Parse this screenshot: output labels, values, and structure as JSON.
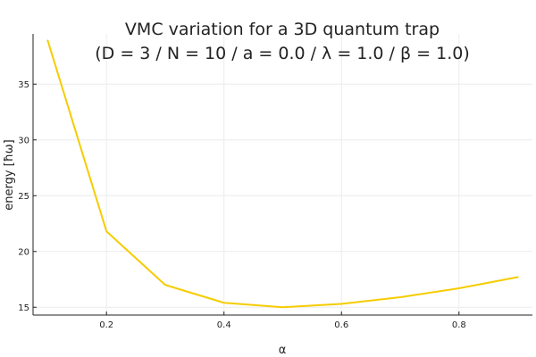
{
  "chart_data": {
    "type": "line",
    "title_lines": [
      "VMC variation for a 3D quantum trap",
      "(D = 3 / N = 10 / a = 0.0 / λ = 1.0 / β = 1.0)"
    ],
    "xlabel": "α",
    "ylabel": "energy [ħω]",
    "x_ticks": [
      0.2,
      0.4,
      0.6,
      0.8
    ],
    "x_tick_labels": [
      "0.2",
      "0.4",
      "0.6",
      "0.8"
    ],
    "y_ticks": [
      15,
      20,
      25,
      30,
      35
    ],
    "y_tick_labels": [
      "15",
      "20",
      "25",
      "30",
      "35"
    ],
    "xlim": [
      0.075,
      0.925
    ],
    "ylim": [
      14.3,
      39.5
    ],
    "grid": true,
    "legend": "none",
    "series": [
      {
        "color": "#f6cc00",
        "x": [
          0.1,
          0.2,
          0.3,
          0.4,
          0.5,
          0.6,
          0.7,
          0.8,
          0.9
        ],
        "y": [
          38.9,
          21.8,
          17.0,
          15.4,
          15.0,
          15.3,
          15.9,
          16.7,
          17.7
        ]
      }
    ]
  }
}
